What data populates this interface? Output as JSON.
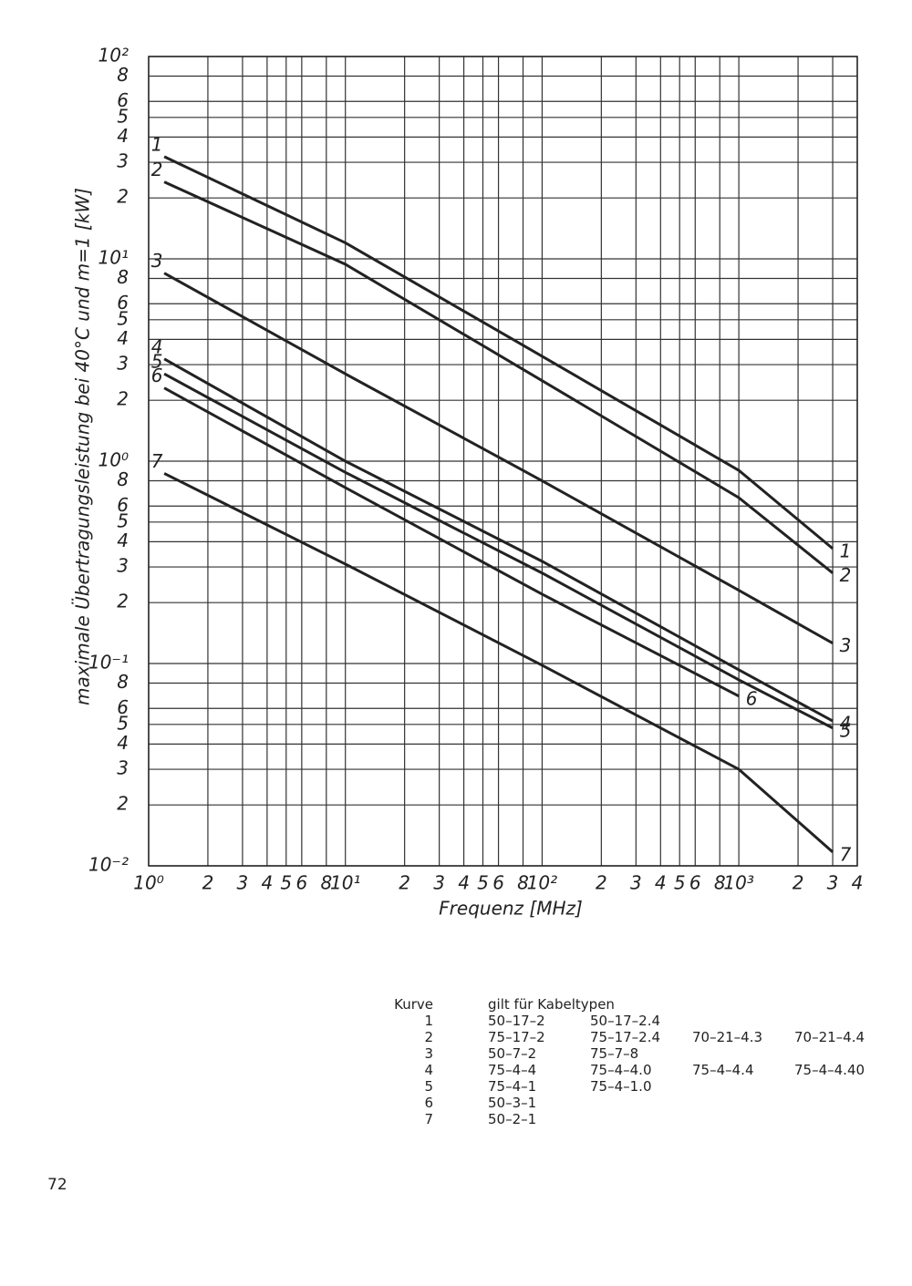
{
  "chart_data": {
    "type": "line",
    "xlabel": "Frequenz [MHz]",
    "ylabel": "maximale Übertragungsleistung bei 40°C und m=1 [kW]",
    "log_x": true,
    "log_y": true,
    "grid": true,
    "x": [
      1.2,
      10,
      100,
      1000,
      3000
    ],
    "series": [
      {
        "name": "1",
        "color": "#222222",
        "values": [
          32,
          12,
          3.3,
          0.9,
          0.37
        ]
      },
      {
        "name": "2",
        "color": "#222222",
        "values": [
          24,
          9.4,
          2.5,
          0.66,
          0.28
        ]
      },
      {
        "name": "3",
        "color": "#222222",
        "values": [
          8.5,
          2.7,
          0.8,
          0.23,
          0.126
        ]
      },
      {
        "name": "4",
        "color": "#222222",
        "values": [
          3.2,
          1.0,
          0.32,
          0.093,
          0.052
        ]
      },
      {
        "name": "5",
        "color": "#222222",
        "values": [
          2.7,
          0.88,
          0.28,
          0.083,
          0.048
        ]
      },
      {
        "name": "6",
        "color": "#222222",
        "values": [
          2.3,
          0.74,
          0.22,
          0.069,
          null
        ]
      },
      {
        "name": "7",
        "color": "#222222",
        "values": [
          0.87,
          0.31,
          0.098,
          0.03,
          0.0117
        ]
      }
    ],
    "xlim": [
      1,
      4000
    ],
    "ylim": [
      0.01,
      100
    ],
    "xticks": [
      {
        "value": 1,
        "label": "10⁰"
      },
      2,
      3,
      4,
      5,
      6,
      8,
      {
        "value": 10,
        "label": "10¹"
      },
      {
        "value": 20,
        "label": "2"
      },
      {
        "value": 30,
        "label": "3"
      },
      {
        "value": 40,
        "label": "4"
      },
      {
        "value": 50,
        "label": "5"
      },
      {
        "value": 60,
        "label": "6"
      },
      {
        "value": 80,
        "label": "8"
      },
      {
        "value": 100,
        "label": "10²"
      },
      {
        "value": 200,
        "label": "2"
      },
      {
        "value": 300,
        "label": "3"
      },
      {
        "value": 400,
        "label": "4"
      },
      {
        "value": 500,
        "label": "5"
      },
      {
        "value": 600,
        "label": "6"
      },
      {
        "value": 800,
        "label": "8"
      },
      {
        "value": 1000,
        "label": "10³"
      },
      {
        "value": 2000,
        "label": "2"
      },
      {
        "value": 3000,
        "label": "3"
      },
      {
        "value": 4000,
        "label": "4"
      }
    ],
    "yticks": [
      {
        "value": 0.01,
        "label": "10⁻²"
      },
      {
        "value": 0.02,
        "label": "2"
      },
      {
        "value": 0.03,
        "label": "3"
      },
      {
        "value": 0.04,
        "label": "4"
      },
      {
        "value": 0.05,
        "label": "5"
      },
      {
        "value": 0.06,
        "label": "6"
      },
      {
        "value": 0.08,
        "label": "8"
      },
      {
        "value": 0.1,
        "label": "10⁻¹"
      },
      {
        "value": 0.2,
        "label": "2"
      },
      {
        "value": 0.3,
        "label": "3"
      },
      {
        "value": 0.4,
        "label": "4"
      },
      {
        "value": 0.5,
        "label": "5"
      },
      {
        "value": 0.6,
        "label": "6"
      },
      {
        "value": 0.8,
        "label": "8"
      },
      {
        "value": 1,
        "label": "10⁰"
      },
      2,
      3,
      4,
      5,
      6,
      8,
      {
        "value": 10,
        "label": "10¹"
      },
      {
        "value": 20,
        "label": "2"
      },
      {
        "value": 30,
        "label": "3"
      },
      {
        "value": 40,
        "label": "4"
      },
      {
        "value": 50,
        "label": "5"
      },
      {
        "value": 60,
        "label": "6"
      },
      {
        "value": 80,
        "label": "8"
      },
      {
        "value": 100,
        "label": "10²"
      }
    ]
  },
  "table": {
    "header": [
      "Kurve",
      "gilt für Kabeltypen"
    ],
    "rows": [
      [
        "1",
        [
          "50–17–2",
          "50–17–2.4"
        ]
      ],
      [
        "2",
        [
          "75–17–2",
          "75–17–2.4",
          "70–21–4.3",
          "70–21–4.4"
        ]
      ],
      [
        "3",
        [
          "50–7–2",
          "75–7–8"
        ]
      ],
      [
        "4",
        [
          "75–4–4",
          "75–4–4.0",
          "75–4–4.4",
          "75–4–4.40"
        ]
      ],
      [
        "5",
        [
          "75–4–1",
          "75–4–1.0"
        ]
      ],
      [
        "6",
        [
          "50–3–1"
        ]
      ],
      [
        "7",
        [
          "50–2–1"
        ]
      ]
    ]
  },
  "page_number": "72"
}
